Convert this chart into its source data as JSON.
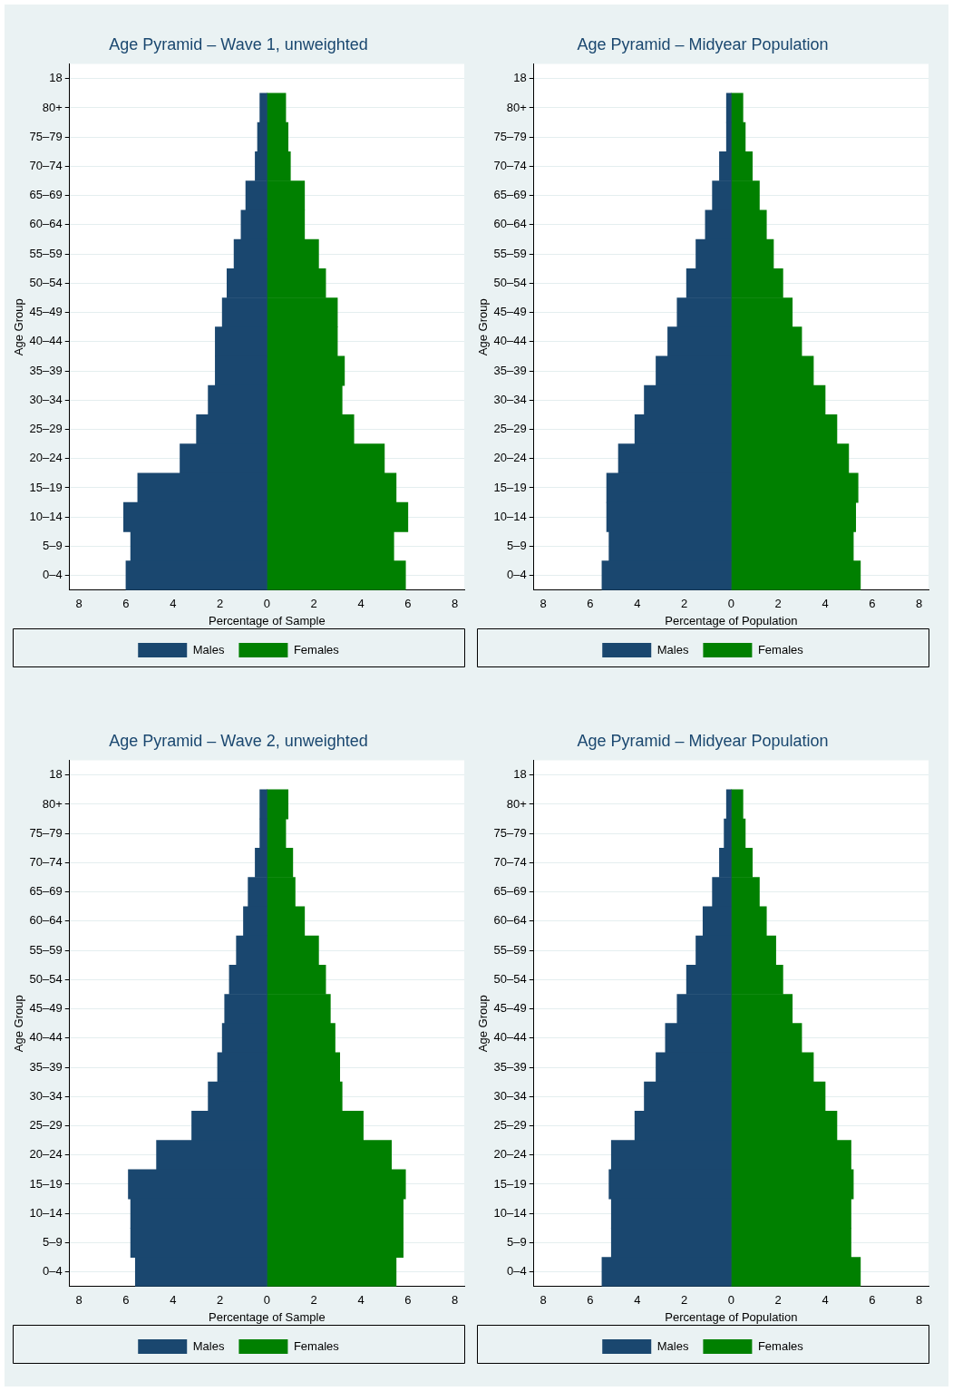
{
  "chart_data": [
    {
      "type": "bar",
      "orientation": "horizontal",
      "stacked": true,
      "title": "Age Pyramid – Wave 1, unweighted",
      "xlabel": "Percentage of Sample",
      "ylabel": "Age Group",
      "categories": [
        "18",
        "80+",
        "75–79",
        "70–74",
        "65–69",
        "60–64",
        "55–59",
        "50–54",
        "45–49",
        "40–44",
        "35–39",
        "30–34",
        "25–29",
        "20–24",
        "15–19",
        "10–14",
        "5–9",
        "0–4"
      ],
      "series": [
        {
          "name": "Males",
          "color": "#1a476f",
          "values": [
            null,
            -0.3,
            -0.4,
            -0.5,
            -0.9,
            -1.1,
            -1.4,
            -1.7,
            -1.9,
            -2.2,
            -2.2,
            -2.5,
            -3.0,
            -3.7,
            -5.5,
            -6.1,
            -5.8,
            -6.0
          ]
        },
        {
          "name": "Females",
          "color": "#008000",
          "values": [
            null,
            0.8,
            0.9,
            1.0,
            1.6,
            1.6,
            2.2,
            2.5,
            3.0,
            3.0,
            3.3,
            3.2,
            3.7,
            5.0,
            5.5,
            6.0,
            5.4,
            5.9
          ]
        }
      ],
      "xlim": [
        -8.4,
        8.4
      ],
      "xticks": [
        {
          "value": -8,
          "label": "8"
        },
        {
          "value": -6,
          "label": "6"
        },
        {
          "value": -4,
          "label": "4"
        },
        {
          "value": -2,
          "label": "2"
        },
        0,
        2,
        4,
        6,
        8
      ],
      "grid": "y",
      "legend": "bottom"
    },
    {
      "type": "bar",
      "orientation": "horizontal",
      "stacked": true,
      "title": "Age Pyramid – Midyear Population",
      "xlabel": "Percentage of Population",
      "ylabel": "Age Group",
      "categories": [
        "18",
        "80+",
        "75–79",
        "70–74",
        "65–69",
        "60–64",
        "55–59",
        "50–54",
        "45–49",
        "40–44",
        "35–39",
        "30–34",
        "25–29",
        "20–24",
        "15–19",
        "10–14",
        "5–9",
        "0–4"
      ],
      "series": [
        {
          "name": "Males",
          "color": "#1a476f",
          "values": [
            null,
            -0.2,
            -0.2,
            -0.5,
            -0.8,
            -1.1,
            -1.5,
            -1.9,
            -2.3,
            -2.7,
            -3.2,
            -3.7,
            -4.1,
            -4.8,
            -5.3,
            -5.3,
            -5.2,
            -5.5
          ]
        },
        {
          "name": "Females",
          "color": "#008000",
          "values": [
            null,
            0.5,
            0.6,
            0.9,
            1.2,
            1.5,
            1.8,
            2.2,
            2.6,
            3.0,
            3.5,
            4.0,
            4.5,
            5.0,
            5.4,
            5.3,
            5.2,
            5.5
          ]
        }
      ],
      "xlim": [
        -8.4,
        8.4
      ],
      "xticks": [
        {
          "value": -8,
          "label": "8"
        },
        {
          "value": -6,
          "label": "6"
        },
        {
          "value": -4,
          "label": "4"
        },
        {
          "value": -2,
          "label": "2"
        },
        0,
        2,
        4,
        6,
        8
      ],
      "grid": "y",
      "legend": "bottom"
    },
    {
      "type": "bar",
      "orientation": "horizontal",
      "stacked": true,
      "title": "Age Pyramid – Wave 2, unweighted",
      "xlabel": "Percentage of Sample",
      "ylabel": "Age Group",
      "categories": [
        "18",
        "80+",
        "75–79",
        "70–74",
        "65–69",
        "60–64",
        "55–59",
        "50–54",
        "45–49",
        "40–44",
        "35–39",
        "30–34",
        "25–29",
        "20–24",
        "15–19",
        "10–14",
        "5–9",
        "0–4"
      ],
      "series": [
        {
          "name": "Males",
          "color": "#1a476f",
          "values": [
            null,
            -0.3,
            -0.3,
            -0.5,
            -0.8,
            -1.0,
            -1.3,
            -1.6,
            -1.8,
            -1.9,
            -2.1,
            -2.5,
            -3.2,
            -4.7,
            -5.9,
            -5.8,
            -5.8,
            -5.6
          ]
        },
        {
          "name": "Females",
          "color": "#008000",
          "values": [
            null,
            0.9,
            0.8,
            1.1,
            1.2,
            1.6,
            2.2,
            2.5,
            2.7,
            2.9,
            3.1,
            3.2,
            4.1,
            5.3,
            5.9,
            5.8,
            5.8,
            5.5
          ]
        }
      ],
      "xlim": [
        -8.4,
        8.4
      ],
      "xticks": [
        {
          "value": -8,
          "label": "8"
        },
        {
          "value": -6,
          "label": "6"
        },
        {
          "value": -4,
          "label": "4"
        },
        {
          "value": -2,
          "label": "2"
        },
        0,
        2,
        4,
        6,
        8
      ],
      "grid": "y",
      "legend": "bottom"
    },
    {
      "type": "bar",
      "orientation": "horizontal",
      "stacked": true,
      "title": "Age Pyramid – Midyear Population",
      "xlabel": "Percentage of Population",
      "ylabel": "Age Group",
      "categories": [
        "18",
        "80+",
        "75–79",
        "70–74",
        "65–69",
        "60–64",
        "55–59",
        "50–54",
        "45–49",
        "40–44",
        "35–39",
        "30–34",
        "25–29",
        "20–24",
        "15–19",
        "10–14",
        "5–9",
        "0–4"
      ],
      "series": [
        {
          "name": "Males",
          "color": "#1a476f",
          "values": [
            null,
            -0.2,
            -0.3,
            -0.5,
            -0.8,
            -1.2,
            -1.5,
            -1.9,
            -2.3,
            -2.8,
            -3.2,
            -3.7,
            -4.1,
            -5.1,
            -5.2,
            -5.1,
            -5.1,
            -5.5
          ]
        },
        {
          "name": "Females",
          "color": "#008000",
          "values": [
            null,
            0.5,
            0.6,
            0.9,
            1.2,
            1.5,
            1.9,
            2.2,
            2.6,
            3.0,
            3.5,
            4.0,
            4.5,
            5.1,
            5.2,
            5.1,
            5.1,
            5.5
          ]
        }
      ],
      "xlim": [
        -8.4,
        8.4
      ],
      "xticks": [
        {
          "value": -8,
          "label": "8"
        },
        {
          "value": -6,
          "label": "6"
        },
        {
          "value": -4,
          "label": "4"
        },
        {
          "value": -2,
          "label": "2"
        },
        0,
        2,
        4,
        6,
        8
      ],
      "grid": "y",
      "legend": "bottom"
    }
  ]
}
